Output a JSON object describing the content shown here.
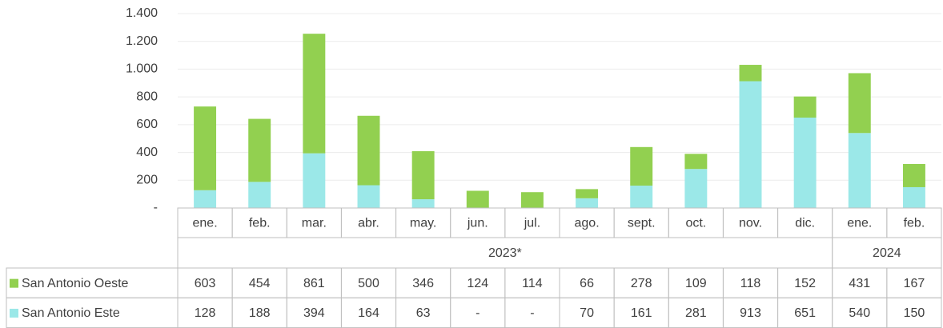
{
  "chart_data": {
    "type": "stacked-bar",
    "groups": [
      {
        "label": "2023*",
        "categories": [
          "ene.",
          "feb.",
          "mar.",
          "abr.",
          "may.",
          "jun.",
          "jul.",
          "ago.",
          "sept.",
          "oct.",
          "nov.",
          "dic."
        ]
      },
      {
        "label": "2024",
        "categories": [
          "ene.",
          "feb."
        ]
      }
    ],
    "series": [
      {
        "name": "San Antonio Este",
        "color": "#9be8e8",
        "values": [
          128,
          188,
          394,
          164,
          63,
          0,
          0,
          70,
          161,
          281,
          913,
          651,
          540,
          150
        ],
        "value_labels": [
          "128",
          "188",
          "394",
          "164",
          "63",
          "-",
          "-",
          "70",
          "161",
          "281",
          "913",
          "651",
          "540",
          "150"
        ]
      },
      {
        "name": "San Antonio Oeste",
        "color": "#92d050",
        "values": [
          603,
          454,
          861,
          500,
          346,
          124,
          114,
          66,
          278,
          109,
          118,
          152,
          431,
          167
        ],
        "value_labels": [
          "603",
          "454",
          "861",
          "500",
          "346",
          "124",
          "114",
          "66",
          "278",
          "109",
          "118",
          "152",
          "431",
          "167"
        ]
      }
    ],
    "ylim": [
      0,
      1400
    ],
    "yticks": [
      {
        "value": 0,
        "label": "-"
      },
      200,
      400,
      600,
      800,
      {
        "value": 1000,
        "label": "1.000"
      },
      {
        "value": 1200,
        "label": "1.200"
      },
      {
        "value": 1400,
        "label": "1.400"
      }
    ],
    "grid": true
  }
}
